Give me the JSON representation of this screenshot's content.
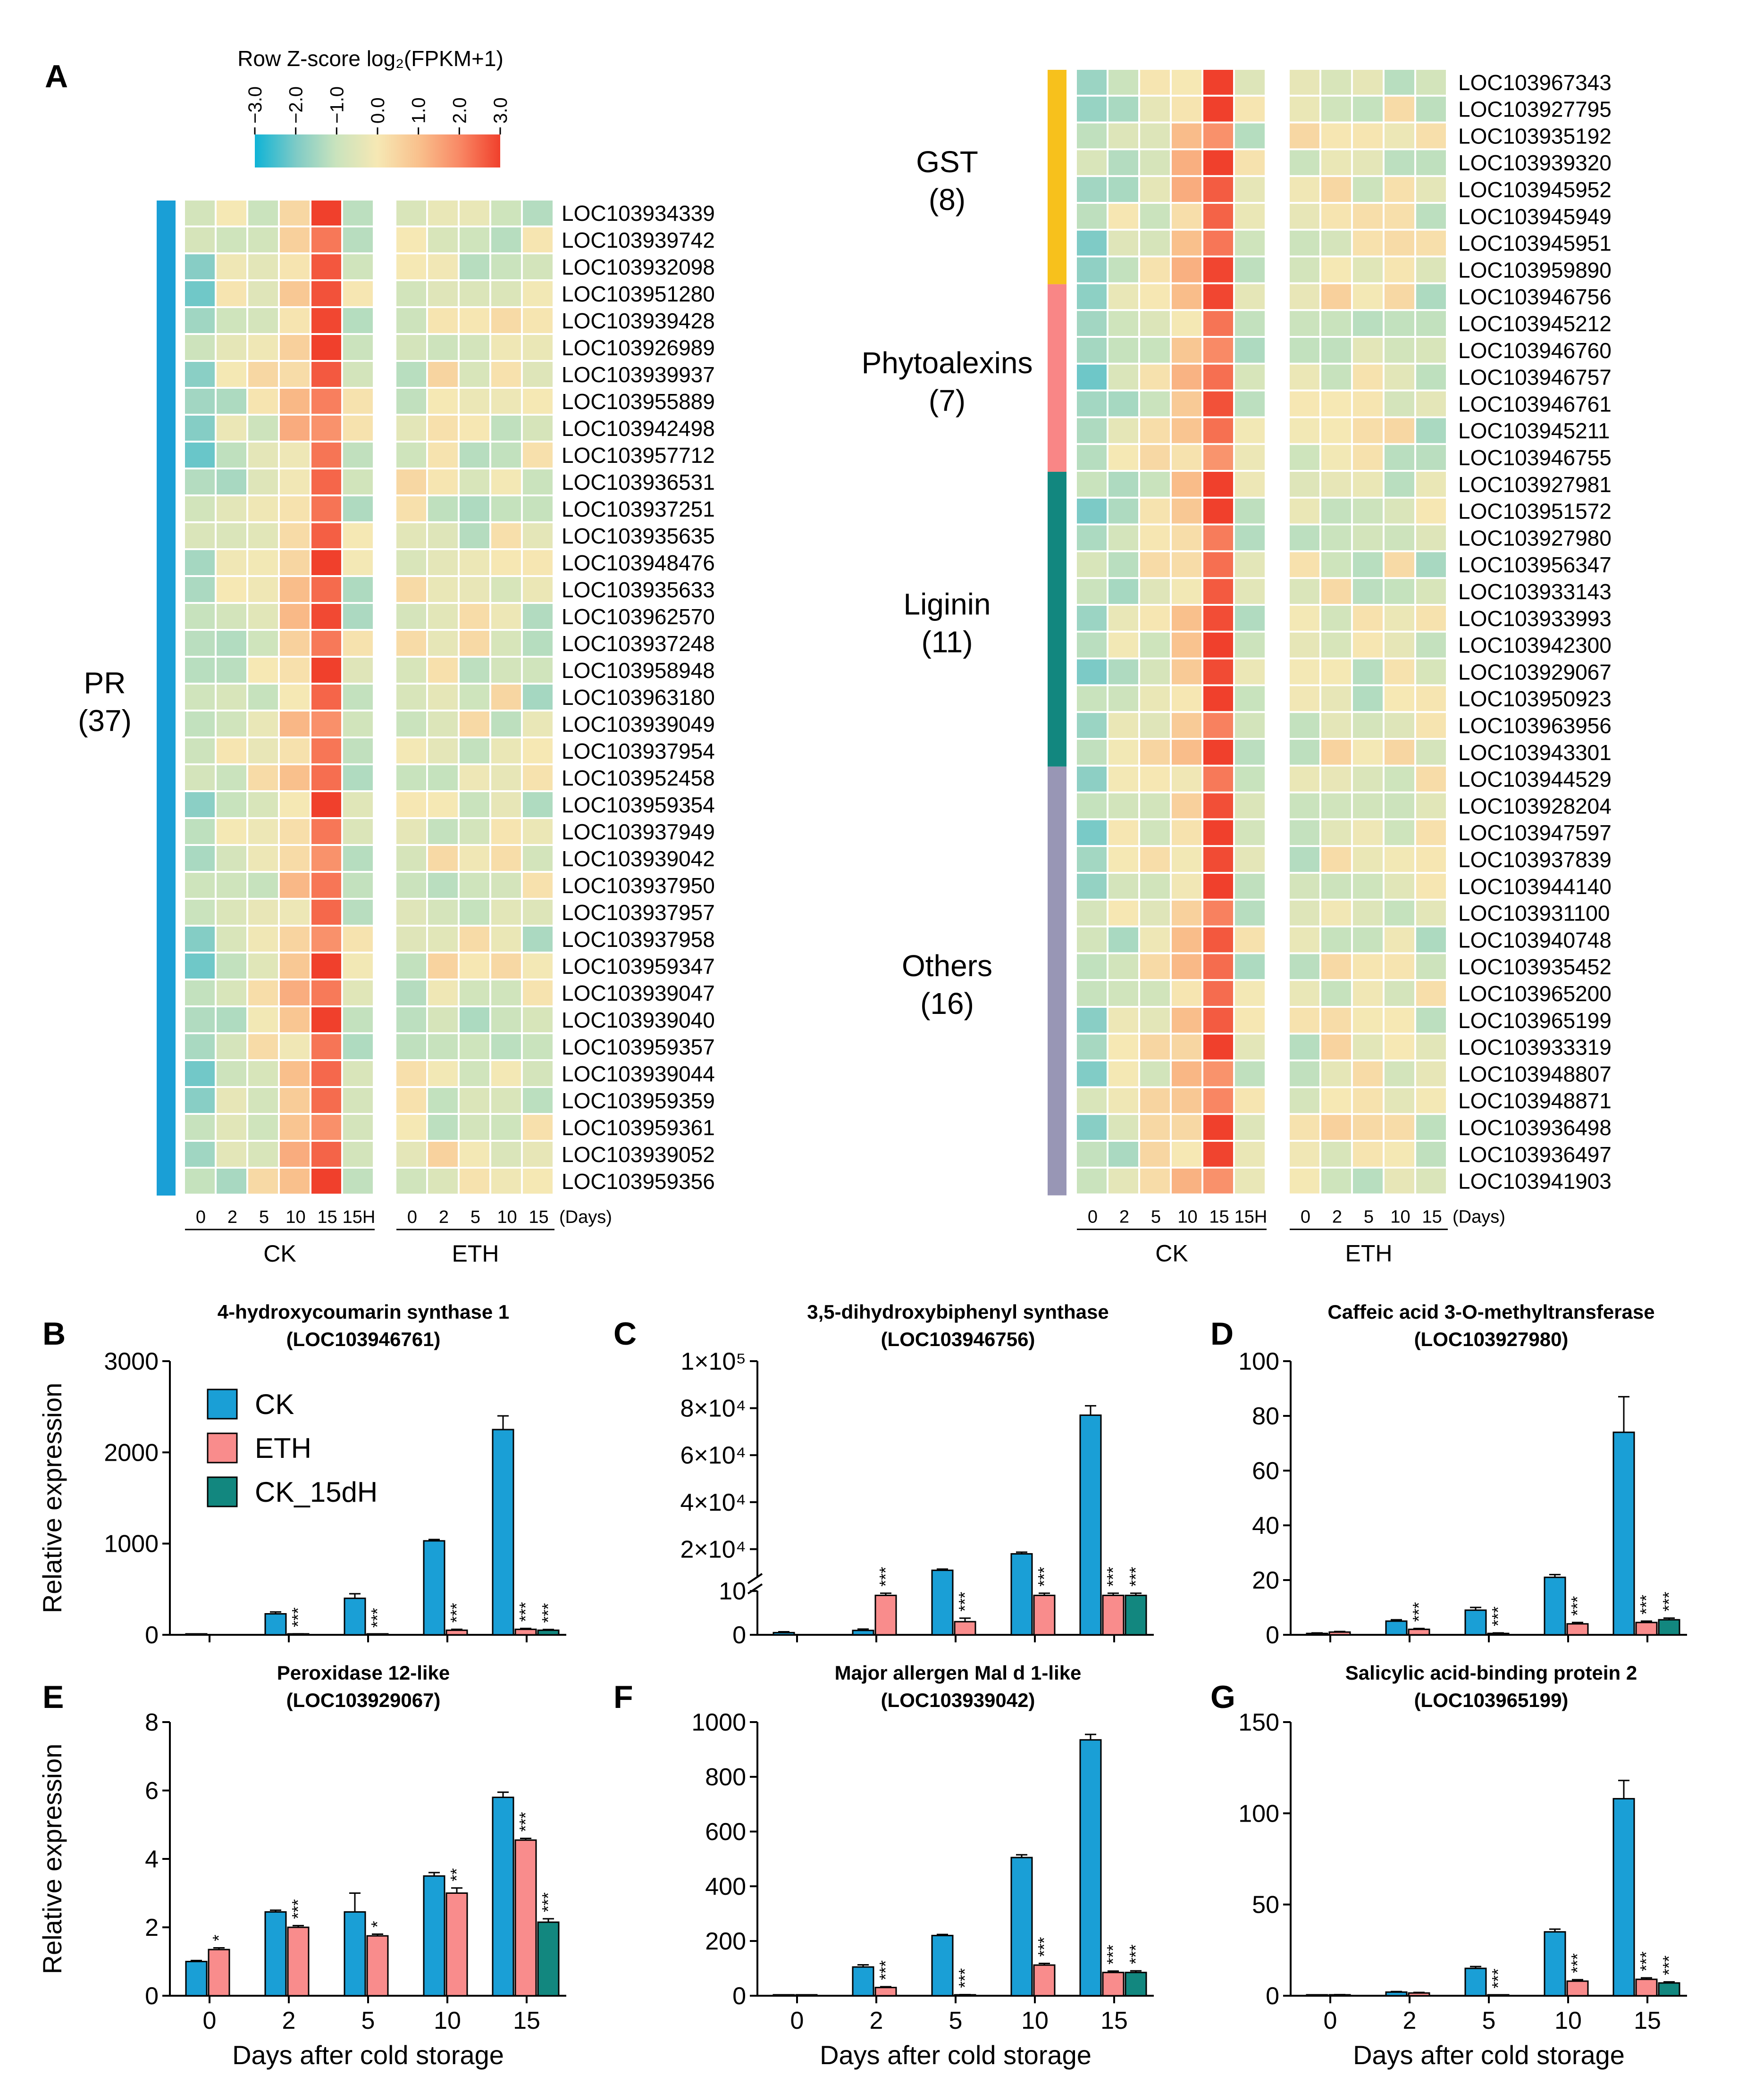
{
  "figure": {
    "colorbar": {
      "title": "Row Z-score log₂(FPKM+1)",
      "ticks": [
        "−3.0",
        "−2.0",
        "−1.0",
        "0.0",
        "1.0",
        "2.0",
        "3.0"
      ],
      "colors": [
        "#0fb3d6",
        "#7fcbc6",
        "#c9e3bd",
        "#f6e8b4",
        "#f9c08c",
        "#f98a66",
        "#f0402c"
      ]
    },
    "panel_A": {
      "letter": "A",
      "day_ticks_ck": [
        "0",
        "2",
        "5",
        "10",
        "15",
        "15H"
      ],
      "day_ticks_eth": [
        "0",
        "2",
        "5",
        "10",
        "15"
      ],
      "days_unit": "(Days)",
      "ck_label": "CK",
      "eth_label": "ETH",
      "left_groups": [
        {
          "name": "PR",
          "count": "(37)",
          "color": "#1a9fd6",
          "genes": [
            "LOC103934339",
            "LOC103939742",
            "LOC103932098",
            "LOC103951280",
            "LOC103939428",
            "LOC103926989",
            "LOC103939937",
            "LOC103955889",
            "LOC103942498",
            "LOC103957712",
            "LOC103936531",
            "LOC103937251",
            "LOC103935635",
            "LOC103948476",
            "LOC103935633",
            "LOC103962570",
            "LOC103937248",
            "LOC103958948",
            "LOC103963180",
            "LOC103939049",
            "LOC103937954",
            "LOC103952458",
            "LOC103959354",
            "LOC103937949",
            "LOC103939042",
            "LOC103937950",
            "LOC103937957",
            "LOC103937958",
            "LOC103959347",
            "LOC103939047",
            "LOC103939040",
            "LOC103959357",
            "LOC103939044",
            "LOC103959359",
            "LOC103959361",
            "LOC103939052",
            "LOC103959356"
          ]
        }
      ],
      "right_groups": [
        {
          "name": "GST",
          "count": "(8)",
          "color": "#f7c11c",
          "genes": [
            "LOC103967343",
            "LOC103927795",
            "LOC103935192",
            "LOC103939320",
            "LOC103945952",
            "LOC103945949",
            "LOC103945951",
            "LOC103959890"
          ]
        },
        {
          "name": "Phytoalexins",
          "count": "(7)",
          "color": "#f98686",
          "genes": [
            "LOC103946756",
            "LOC103945212",
            "LOC103946760",
            "LOC103946757",
            "LOC103946761",
            "LOC103945211",
            "LOC103946755"
          ]
        },
        {
          "name": "Liginin",
          "count": "(11)",
          "color": "#12877f",
          "genes": [
            "LOC103927981",
            "LOC103951572",
            "LOC103927980",
            "LOC103956347",
            "LOC103933143",
            "LOC103933993",
            "LOC103942300",
            "LOC103929067",
            "LOC103950923",
            "LOC103963956",
            "LOC103943301"
          ]
        },
        {
          "name": "Others",
          "count": "(16)",
          "color": "#9896b5",
          "genes": [
            "LOC103944529",
            "LOC103928204",
            "LOC103947597",
            "LOC103937839",
            "LOC103944140",
            "LOC103931100",
            "LOC103940748",
            "LOC103935452",
            "LOC103965200",
            "LOC103965199",
            "LOC103933319",
            "LOC103948807",
            "LOC103948871",
            "LOC103936498",
            "LOC103936497",
            "LOC103941903"
          ]
        }
      ]
    },
    "legend": {
      "ck": "CK",
      "eth": "ETH",
      "ck15": "CK_15dH"
    },
    "series_colors": {
      "ck": "#1a9fd6",
      "eth": "#f98c8c",
      "ck15": "#12877f"
    },
    "common": {
      "xlabel": "Days after cold storage",
      "ylabel": "Relative expression"
    }
  },
  "chart_data": [
    {
      "type": "bar",
      "panel": "B",
      "title": "4-hydroxycoumarin synthase 1",
      "subtitle": "(LOC103946761)",
      "categories": [
        "0",
        "2",
        "5",
        "10",
        "15"
      ],
      "ylim": [
        0,
        3000
      ],
      "yticks": [
        "0",
        "1000",
        "2000",
        "3000"
      ],
      "ytick_values": [
        0,
        1000,
        2000,
        3000
      ],
      "series": [
        {
          "name": "CK",
          "values": [
            1,
            230,
            400,
            1030,
            2250
          ],
          "errors": [
            0,
            20,
            50,
            15,
            150
          ]
        },
        {
          "name": "ETH",
          "values": [
            null,
            8,
            3,
            50,
            60
          ],
          "errors": [
            0,
            3,
            2,
            10,
            10
          ],
          "sig": [
            "",
            "***",
            "***",
            "***",
            "***"
          ]
        },
        {
          "name": "CK_15dH",
          "values": [
            null,
            null,
            null,
            null,
            50
          ],
          "errors": [
            0,
            0,
            0,
            0,
            8
          ],
          "sig": [
            "",
            "",
            "",
            "",
            "***"
          ]
        }
      ]
    },
    {
      "type": "bar",
      "panel": "C",
      "title": "3,5-dihydroxybiphenyl synthase",
      "subtitle": "(LOC103946756)",
      "categories": [
        "0",
        "2",
        "5",
        "10",
        "15"
      ],
      "ylim": [
        0,
        100000
      ],
      "yticks": [
        "0",
        "10",
        "2×10⁴",
        "4×10⁴",
        "6×10⁴",
        "8×10⁴",
        "1×10⁵"
      ],
      "ytick_values": [
        0,
        10,
        20000,
        40000,
        60000,
        80000,
        100000
      ],
      "axis_break": {
        "lower_max": 10,
        "upper_min": 8000
      },
      "series": [
        {
          "name": "CK",
          "values": [
            0.5,
            1,
            11000,
            18000,
            77000
          ],
          "errors": [
            0.2,
            0.3,
            500,
            700,
            4000
          ]
        },
        {
          "name": "ETH",
          "values": [
            null,
            9,
            3,
            9,
            9
          ],
          "errors": [
            0,
            0.5,
            0.8,
            0.5,
            0.5
          ],
          "sig": [
            "",
            "***",
            "***",
            "***",
            "***"
          ]
        },
        {
          "name": "CK_15dH",
          "values": [
            null,
            null,
            null,
            null,
            9
          ],
          "errors": [
            0,
            0,
            0,
            0,
            0.5
          ],
          "sig": [
            "",
            "",
            "",
            "",
            "***"
          ]
        }
      ]
    },
    {
      "type": "bar",
      "panel": "D",
      "title": "Caffeic acid 3-O-methyltransferase",
      "subtitle": "(LOC103927980)",
      "categories": [
        "0",
        "2",
        "5",
        "10",
        "15"
      ],
      "ylim": [
        0,
        100
      ],
      "yticks": [
        "0",
        "20",
        "40",
        "60",
        "80",
        "100"
      ],
      "ytick_values": [
        0,
        20,
        40,
        60,
        80,
        100
      ],
      "series": [
        {
          "name": "CK",
          "values": [
            0.5,
            5,
            9,
            21,
            74
          ],
          "errors": [
            0.2,
            0.5,
            1,
            1,
            13
          ]
        },
        {
          "name": "ETH",
          "values": [
            1,
            2,
            0.5,
            4,
            4.5
          ],
          "errors": [
            0.2,
            0.3,
            0.2,
            0.5,
            0.5
          ],
          "sig": [
            "",
            "***",
            "***",
            "***",
            "***"
          ]
        },
        {
          "name": "CK_15dH",
          "values": [
            null,
            null,
            null,
            null,
            5.5
          ],
          "errors": [
            0,
            0,
            0,
            0,
            0.6
          ],
          "sig": [
            "",
            "",
            "",
            "",
            "***"
          ]
        }
      ]
    },
    {
      "type": "bar",
      "panel": "E",
      "title": "Peroxidase 12-like",
      "subtitle": "(LOC103929067)",
      "categories": [
        "0",
        "2",
        "5",
        "10",
        "15"
      ],
      "ylim": [
        0,
        8
      ],
      "yticks": [
        "0",
        "2",
        "4",
        "6",
        "8"
      ],
      "ytick_values": [
        0,
        2,
        4,
        6,
        8
      ],
      "series": [
        {
          "name": "CK",
          "values": [
            1,
            2.45,
            2.45,
            3.5,
            5.8
          ],
          "errors": [
            0.03,
            0.05,
            0.55,
            0.1,
            0.15
          ]
        },
        {
          "name": "ETH",
          "values": [
            1.35,
            2.0,
            1.75,
            3.0,
            4.55
          ],
          "errors": [
            0.05,
            0.05,
            0.05,
            0.15,
            0.05
          ],
          "sig": [
            "*",
            "***",
            "*",
            "**",
            "***"
          ]
        },
        {
          "name": "CK_15dH",
          "values": [
            null,
            null,
            null,
            null,
            2.15
          ],
          "errors": [
            0,
            0,
            0,
            0,
            0.1
          ],
          "sig": [
            "",
            "",
            "",
            "",
            "***"
          ]
        }
      ]
    },
    {
      "type": "bar",
      "panel": "F",
      "title": "Major allergen Mal d 1-like",
      "subtitle": "(LOC103939042)",
      "categories": [
        "0",
        "2",
        "5",
        "10",
        "15"
      ],
      "ylim": [
        0,
        1000
      ],
      "yticks": [
        "0",
        "200",
        "400",
        "600",
        "800",
        "1000"
      ],
      "ytick_values": [
        0,
        200,
        400,
        600,
        800,
        1000
      ],
      "series": [
        {
          "name": "CK",
          "values": [
            1,
            105,
            220,
            505,
            935
          ],
          "errors": [
            0.5,
            8,
            4,
            10,
            20
          ]
        },
        {
          "name": "ETH",
          "values": [
            2,
            30,
            3,
            112,
            85
          ],
          "errors": [
            0.5,
            3,
            1,
            6,
            5
          ],
          "sig": [
            "",
            "***",
            "***",
            "***",
            "***"
          ]
        },
        {
          "name": "CK_15dH",
          "values": [
            null,
            null,
            null,
            null,
            85
          ],
          "errors": [
            0,
            0,
            0,
            0,
            6
          ],
          "sig": [
            "",
            "",
            "",
            "",
            "***"
          ]
        }
      ]
    },
    {
      "type": "bar",
      "panel": "G",
      "title": "Salicylic acid-binding protein 2",
      "subtitle": "(LOC103965199)",
      "categories": [
        "0",
        "2",
        "5",
        "10",
        "15"
      ],
      "ylim": [
        0,
        150
      ],
      "yticks": [
        "0",
        "50",
        "100",
        "150"
      ],
      "ytick_values": [
        0,
        50,
        100,
        150
      ],
      "series": [
        {
          "name": "CK",
          "values": [
            0.3,
            2,
            15,
            35,
            108
          ],
          "errors": [
            0.1,
            0.3,
            1,
            1.5,
            10
          ]
        },
        {
          "name": "ETH",
          "values": [
            0.5,
            1.5,
            0.3,
            8,
            9
          ],
          "errors": [
            0.1,
            0.3,
            0.1,
            0.8,
            0.8
          ],
          "sig": [
            "",
            "",
            "***",
            "***",
            "***"
          ]
        },
        {
          "name": "CK_15dH",
          "values": [
            null,
            null,
            null,
            null,
            7
          ],
          "errors": [
            0,
            0,
            0,
            0,
            0.6
          ],
          "sig": [
            "",
            "",
            "",
            "",
            "***"
          ]
        }
      ]
    }
  ]
}
